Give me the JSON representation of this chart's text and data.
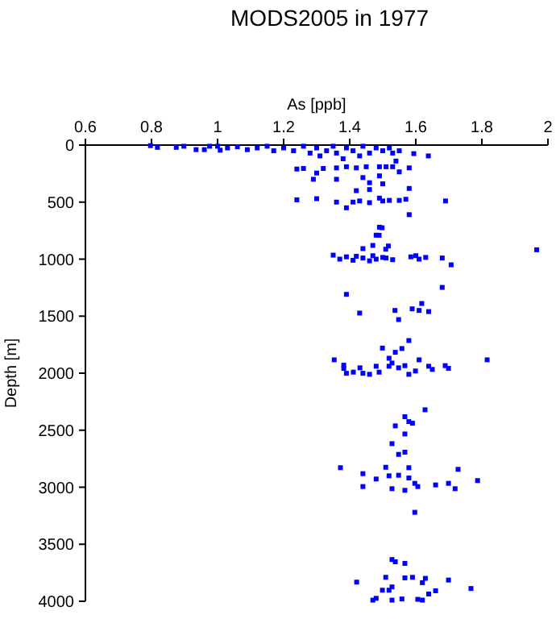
{
  "chart_data": {
    "type": "scatter",
    "title": "MODS2005 in 1977",
    "xlabel": "As [ppb]",
    "ylabel": "Depth [m]",
    "xlim": [
      0.6,
      2
    ],
    "xticks": [
      0.6,
      0.8,
      1,
      1.2,
      1.4,
      1.6,
      1.8,
      2
    ],
    "ylim": [
      4000,
      0
    ],
    "yticks": [
      0,
      500,
      1000,
      1500,
      2000,
      2500,
      3000,
      3500,
      4000
    ],
    "grid": false,
    "marker": "square",
    "series": [
      {
        "color": "#0000ff",
        "x": [
          0.797,
          0.818,
          0.875,
          0.898,
          0.935,
          0.96,
          0.976,
          1.0,
          1.008,
          1.03,
          1.06,
          1.09,
          1.12,
          1.15,
          1.17,
          1.2,
          1.23,
          1.26,
          1.28,
          1.3,
          1.31,
          1.33,
          1.35,
          1.36,
          1.38,
          1.39,
          1.41,
          1.43,
          1.44,
          1.46,
          1.48,
          1.5,
          1.52,
          1.53,
          1.55,
          1.594,
          1.638,
          1.24,
          1.26,
          1.29,
          1.3,
          1.32,
          1.36,
          1.36,
          1.39,
          1.42,
          1.45,
          1.44,
          1.46,
          1.49,
          1.49,
          1.5,
          1.51,
          1.53,
          1.54,
          1.55,
          1.58,
          1.58,
          1.24,
          1.3,
          1.36,
          1.39,
          1.41,
          1.43,
          1.46,
          1.49,
          1.5,
          1.52,
          1.55,
          1.57,
          1.58,
          1.69,
          1.46,
          1.42,
          1.49,
          1.48,
          1.498,
          1.489,
          1.47,
          1.517,
          1.509,
          1.44,
          1.35,
          1.37,
          1.39,
          1.41,
          1.42,
          1.44,
          1.46,
          1.47,
          1.48,
          1.5,
          1.51,
          1.53,
          1.585,
          1.6,
          1.61,
          1.63,
          1.68,
          1.707,
          1.966,
          1.39,
          1.43,
          1.537,
          1.548,
          1.589,
          1.61,
          1.618,
          1.639,
          1.68,
          1.579,
          1.499,
          1.538,
          1.558,
          1.519,
          1.61,
          1.353,
          1.382,
          1.382,
          1.39,
          1.411,
          1.431,
          1.44,
          1.46,
          1.48,
          1.489,
          1.519,
          1.528,
          1.548,
          1.567,
          1.579,
          1.599,
          1.639,
          1.65,
          1.689,
          1.699,
          1.816,
          1.628,
          1.567,
          1.538,
          1.579,
          1.59,
          1.567,
          1.528,
          1.548,
          1.567,
          1.372,
          1.44,
          1.509,
          1.579,
          1.48,
          1.519,
          1.548,
          1.579,
          1.44,
          1.528,
          1.567,
          1.597,
          1.606,
          1.66,
          1.728,
          1.699,
          1.719,
          1.787,
          1.597,
          1.528,
          1.538,
          1.567,
          1.421,
          1.509,
          1.567,
          1.59,
          1.62,
          1.629,
          1.699,
          1.767,
          1.499,
          1.519,
          1.528,
          1.48,
          1.47,
          1.528,
          1.558,
          1.606,
          1.62,
          1.639,
          1.66
        ],
        "values": [
          5,
          20,
          20,
          10,
          40,
          40,
          10,
          10,
          45,
          25,
          15,
          40,
          25,
          10,
          50,
          25,
          50,
          10,
          70,
          25,
          95,
          50,
          10,
          70,
          120,
          25,
          50,
          95,
          10,
          70,
          25,
          50,
          25,
          70,
          50,
          75,
          95,
          210,
          205,
          300,
          245,
          205,
          200,
          300,
          190,
          200,
          190,
          285,
          330,
          190,
          270,
          340,
          190,
          190,
          140,
          235,
          200,
          380,
          480,
          470,
          500,
          550,
          500,
          490,
          505,
          465,
          490,
          485,
          485,
          475,
          610,
          490,
          390,
          400,
          720,
          790,
          725,
          791,
          880,
          885,
          913,
          908,
          965,
          1000,
          980,
          1010,
          975,
          990,
          1015,
          970,
          1000,
          985,
          990,
          1005,
          980,
          970,
          1000,
          985,
          990,
          1050,
          918,
          1309,
          1473,
          1450,
          1530,
          1436,
          1450,
          1389,
          1460,
          1248,
          1714,
          1780,
          1817,
          1784,
          1869,
          1883,
          1883,
          1930,
          1958,
          2001,
          1991,
          1953,
          2001,
          2010,
          1939,
          1991,
          1939,
          1911,
          1953,
          1934,
          2010,
          1981,
          1939,
          1967,
          1934,
          1958,
          1883,
          2321,
          2382,
          2462,
          2425,
          2439,
          2533,
          2618,
          2712,
          2693,
          2829,
          2881,
          2825,
          2829,
          2928,
          2900,
          2895,
          2919,
          2994,
          3013,
          3027,
          2966,
          2994,
          2980,
          2843,
          2966,
          3013,
          2942,
          3220,
          3634,
          3654,
          3668,
          3832,
          3790,
          3795,
          3790,
          3837,
          3799,
          3814,
          3888,
          3903,
          3903,
          3874,
          3974,
          3990,
          3990,
          3980,
          3983,
          3990,
          3936,
          3908
        ]
      }
    ]
  }
}
